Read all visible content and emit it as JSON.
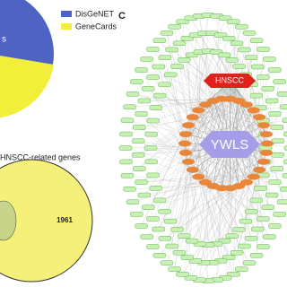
{
  "panel_a": {
    "cut_label": "s",
    "legend": [
      "DisGeNET",
      "GeneCards"
    ]
  },
  "panel_b": {
    "title": "HNSCC-related genes",
    "venn_label": "1961"
  },
  "panel_c": {
    "letter": "C",
    "target_node": "HNSCC",
    "drug_node": "YWLS"
  }
}
